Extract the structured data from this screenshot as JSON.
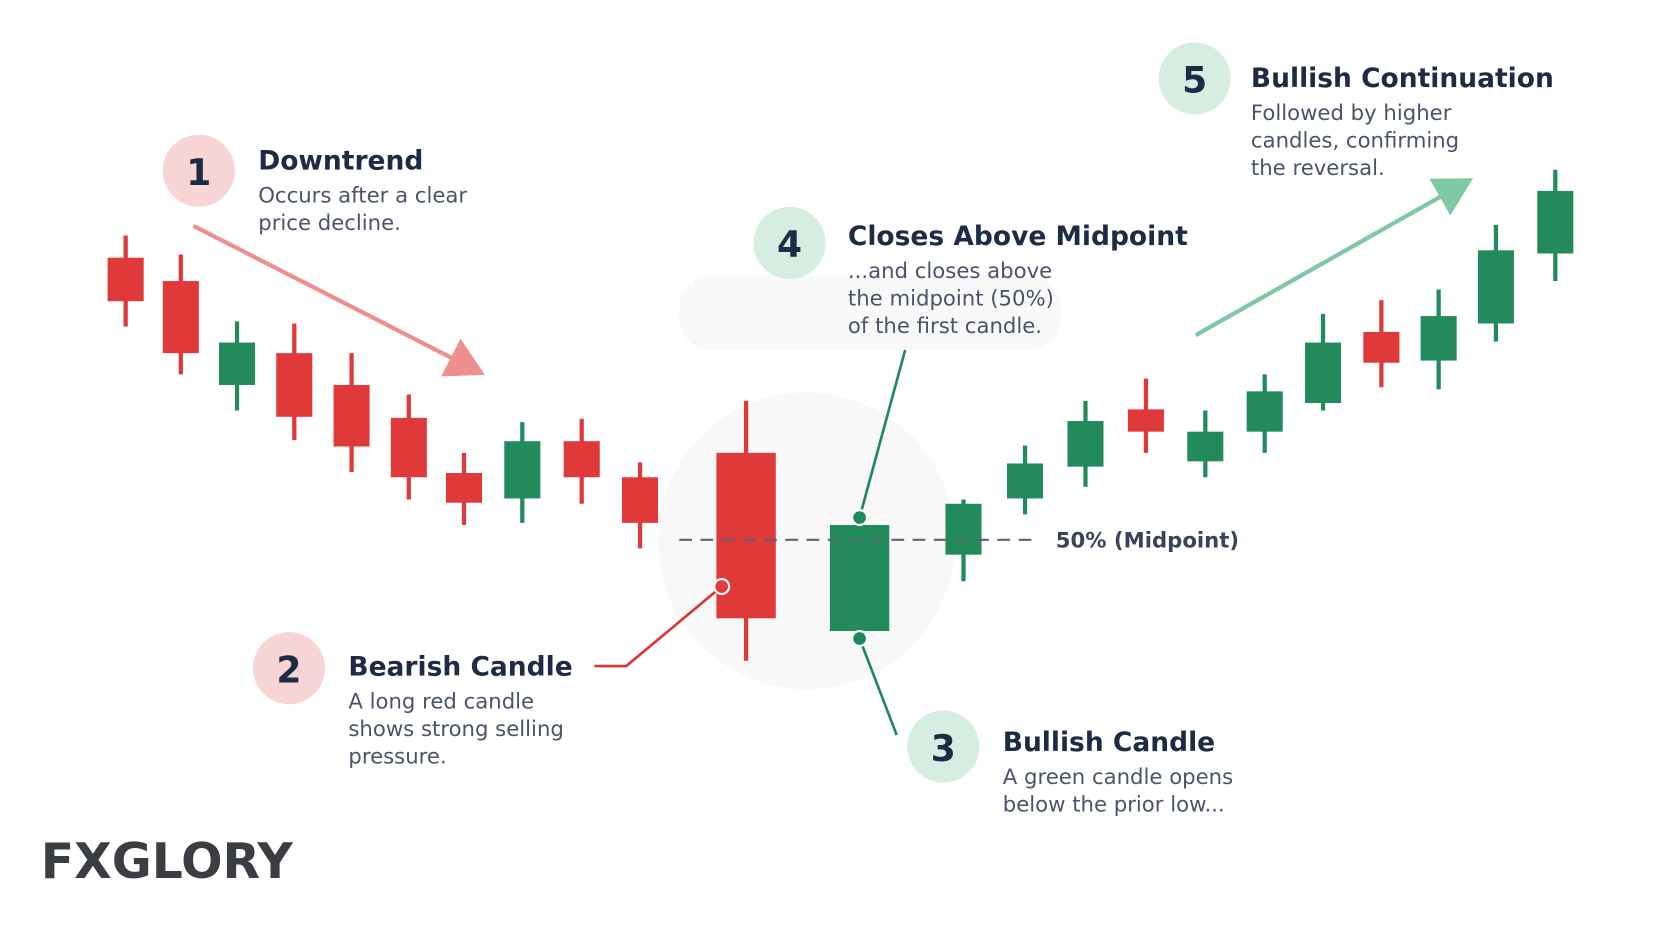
{
  "callouts": [
    {
      "number": "1",
      "title": "Downtrend",
      "lines": [
        "Occurs after a clear",
        "price decline."
      ]
    },
    {
      "number": "2",
      "title": "Bearish Candle",
      "lines": [
        "A long red candle",
        "shows strong selling",
        "pressure."
      ]
    },
    {
      "number": "3",
      "title": "Bullish Candle",
      "lines": [
        "A green candle opens",
        "below the prior low..."
      ]
    },
    {
      "number": "4",
      "title": "Closes Above Midpoint",
      "lines": [
        "...and closes above",
        "the midpoint (50%)",
        "of the first candle."
      ]
    },
    {
      "number": "5",
      "title": "Bullish Continuation",
      "lines": [
        "Followed by higher",
        "candles, confirming",
        "the reversal."
      ]
    }
  ],
  "midpoint_label": "50% (Midpoint)",
  "logo": "FXGLORY"
}
